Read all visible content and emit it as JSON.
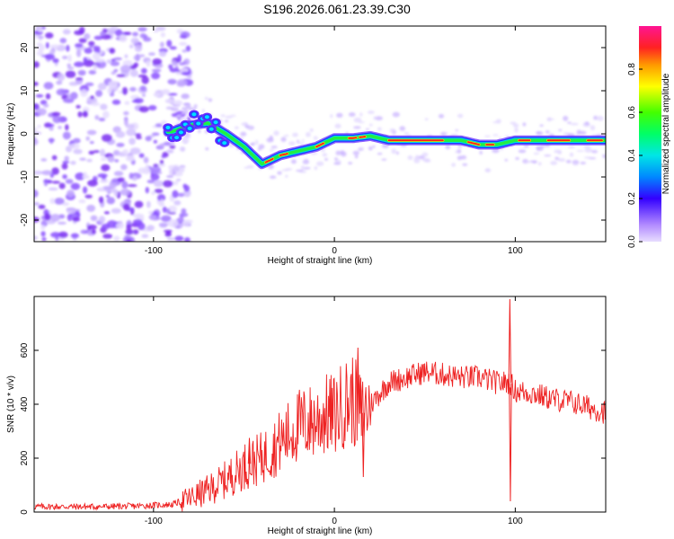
{
  "title": "S196.2026.061.23.39.C30",
  "colors": {
    "snr_line": "#ee2222",
    "spectro_low": "#b088ff",
    "spectro_mid": "#00c8ff",
    "spectro_high": "#ff2020"
  },
  "chart_data": [
    {
      "type": "heatmap",
      "name": "spectrogram",
      "xlabel": "Height of straight line (km)",
      "ylabel": "Frequency (Hz)",
      "xlim": [
        -166,
        150
      ],
      "ylim": [
        -25,
        25
      ],
      "xticks": [
        -100,
        0,
        100
      ],
      "yticks": [
        -20,
        -10,
        0,
        10,
        20
      ],
      "xticklabels": [
        "-100",
        "0",
        "100"
      ],
      "yticklabels": [
        "-20",
        "-10",
        "0",
        "10",
        "20"
      ],
      "colorbar": {
        "label": "Normalized spectral amplitude",
        "range": [
          0,
          1
        ],
        "ticks": [
          "0.0",
          "0.2",
          "0.4",
          "0.6",
          "0.8"
        ],
        "tick_values": [
          0.0,
          0.2,
          0.4,
          0.6,
          0.8
        ]
      },
      "ridge": {
        "x": [
          -90,
          -80,
          -70,
          -60,
          -50,
          -40,
          -30,
          -20,
          -10,
          0,
          10,
          20,
          30,
          40,
          50,
          60,
          70,
          80,
          90,
          100,
          110,
          120,
          130,
          140,
          150
        ],
        "freq": [
          0.5,
          2,
          2.5,
          0,
          -3,
          -7,
          -5,
          -4,
          -3,
          -1,
          -1,
          -0.5,
          -1.5,
          -1.5,
          -1.5,
          -1.5,
          -1.5,
          -2.5,
          -2.5,
          -1.5,
          -1.5,
          -1.5,
          -1.5,
          -1.5,
          -1.5
        ]
      }
    },
    {
      "type": "line",
      "name": "snr",
      "xlabel": "Height of straight line (km)",
      "ylabel": "SNR (10 * v/v)",
      "xlim": [
        -166,
        150
      ],
      "ylim": [
        0,
        800
      ],
      "xticks": [
        -100,
        0,
        100
      ],
      "yticks": [
        0,
        200,
        400,
        600
      ],
      "xticklabels": [
        "-100",
        "0",
        "100"
      ],
      "yticklabels": [
        "0",
        "200",
        "400",
        "600"
      ],
      "series": [
        {
          "name": "SNR",
          "x": [
            -166,
            -150,
            -130,
            -110,
            -90,
            -80,
            -70,
            -60,
            -50,
            -40,
            -30,
            -20,
            -10,
            -5,
            0,
            5,
            10,
            15,
            20,
            25,
            30,
            40,
            50,
            60,
            70,
            80,
            90,
            95,
            97,
            100,
            110,
            120,
            130,
            140,
            150
          ],
          "y": [
            20,
            20,
            20,
            22,
            28,
            50,
            80,
            120,
            170,
            200,
            260,
            320,
            340,
            360,
            360,
            400,
            420,
            360,
            400,
            440,
            480,
            500,
            520,
            510,
            500,
            500,
            480,
            480,
            480,
            450,
            440,
            420,
            410,
            390,
            370
          ]
        }
      ],
      "spikes": [
        {
          "x": -47,
          "y": 275
        },
        {
          "x": 13,
          "y": 610
        },
        {
          "x": 16,
          "y": 130
        },
        {
          "x": 97,
          "y": 790
        },
        {
          "x": 97.3,
          "y": 40
        }
      ]
    }
  ]
}
